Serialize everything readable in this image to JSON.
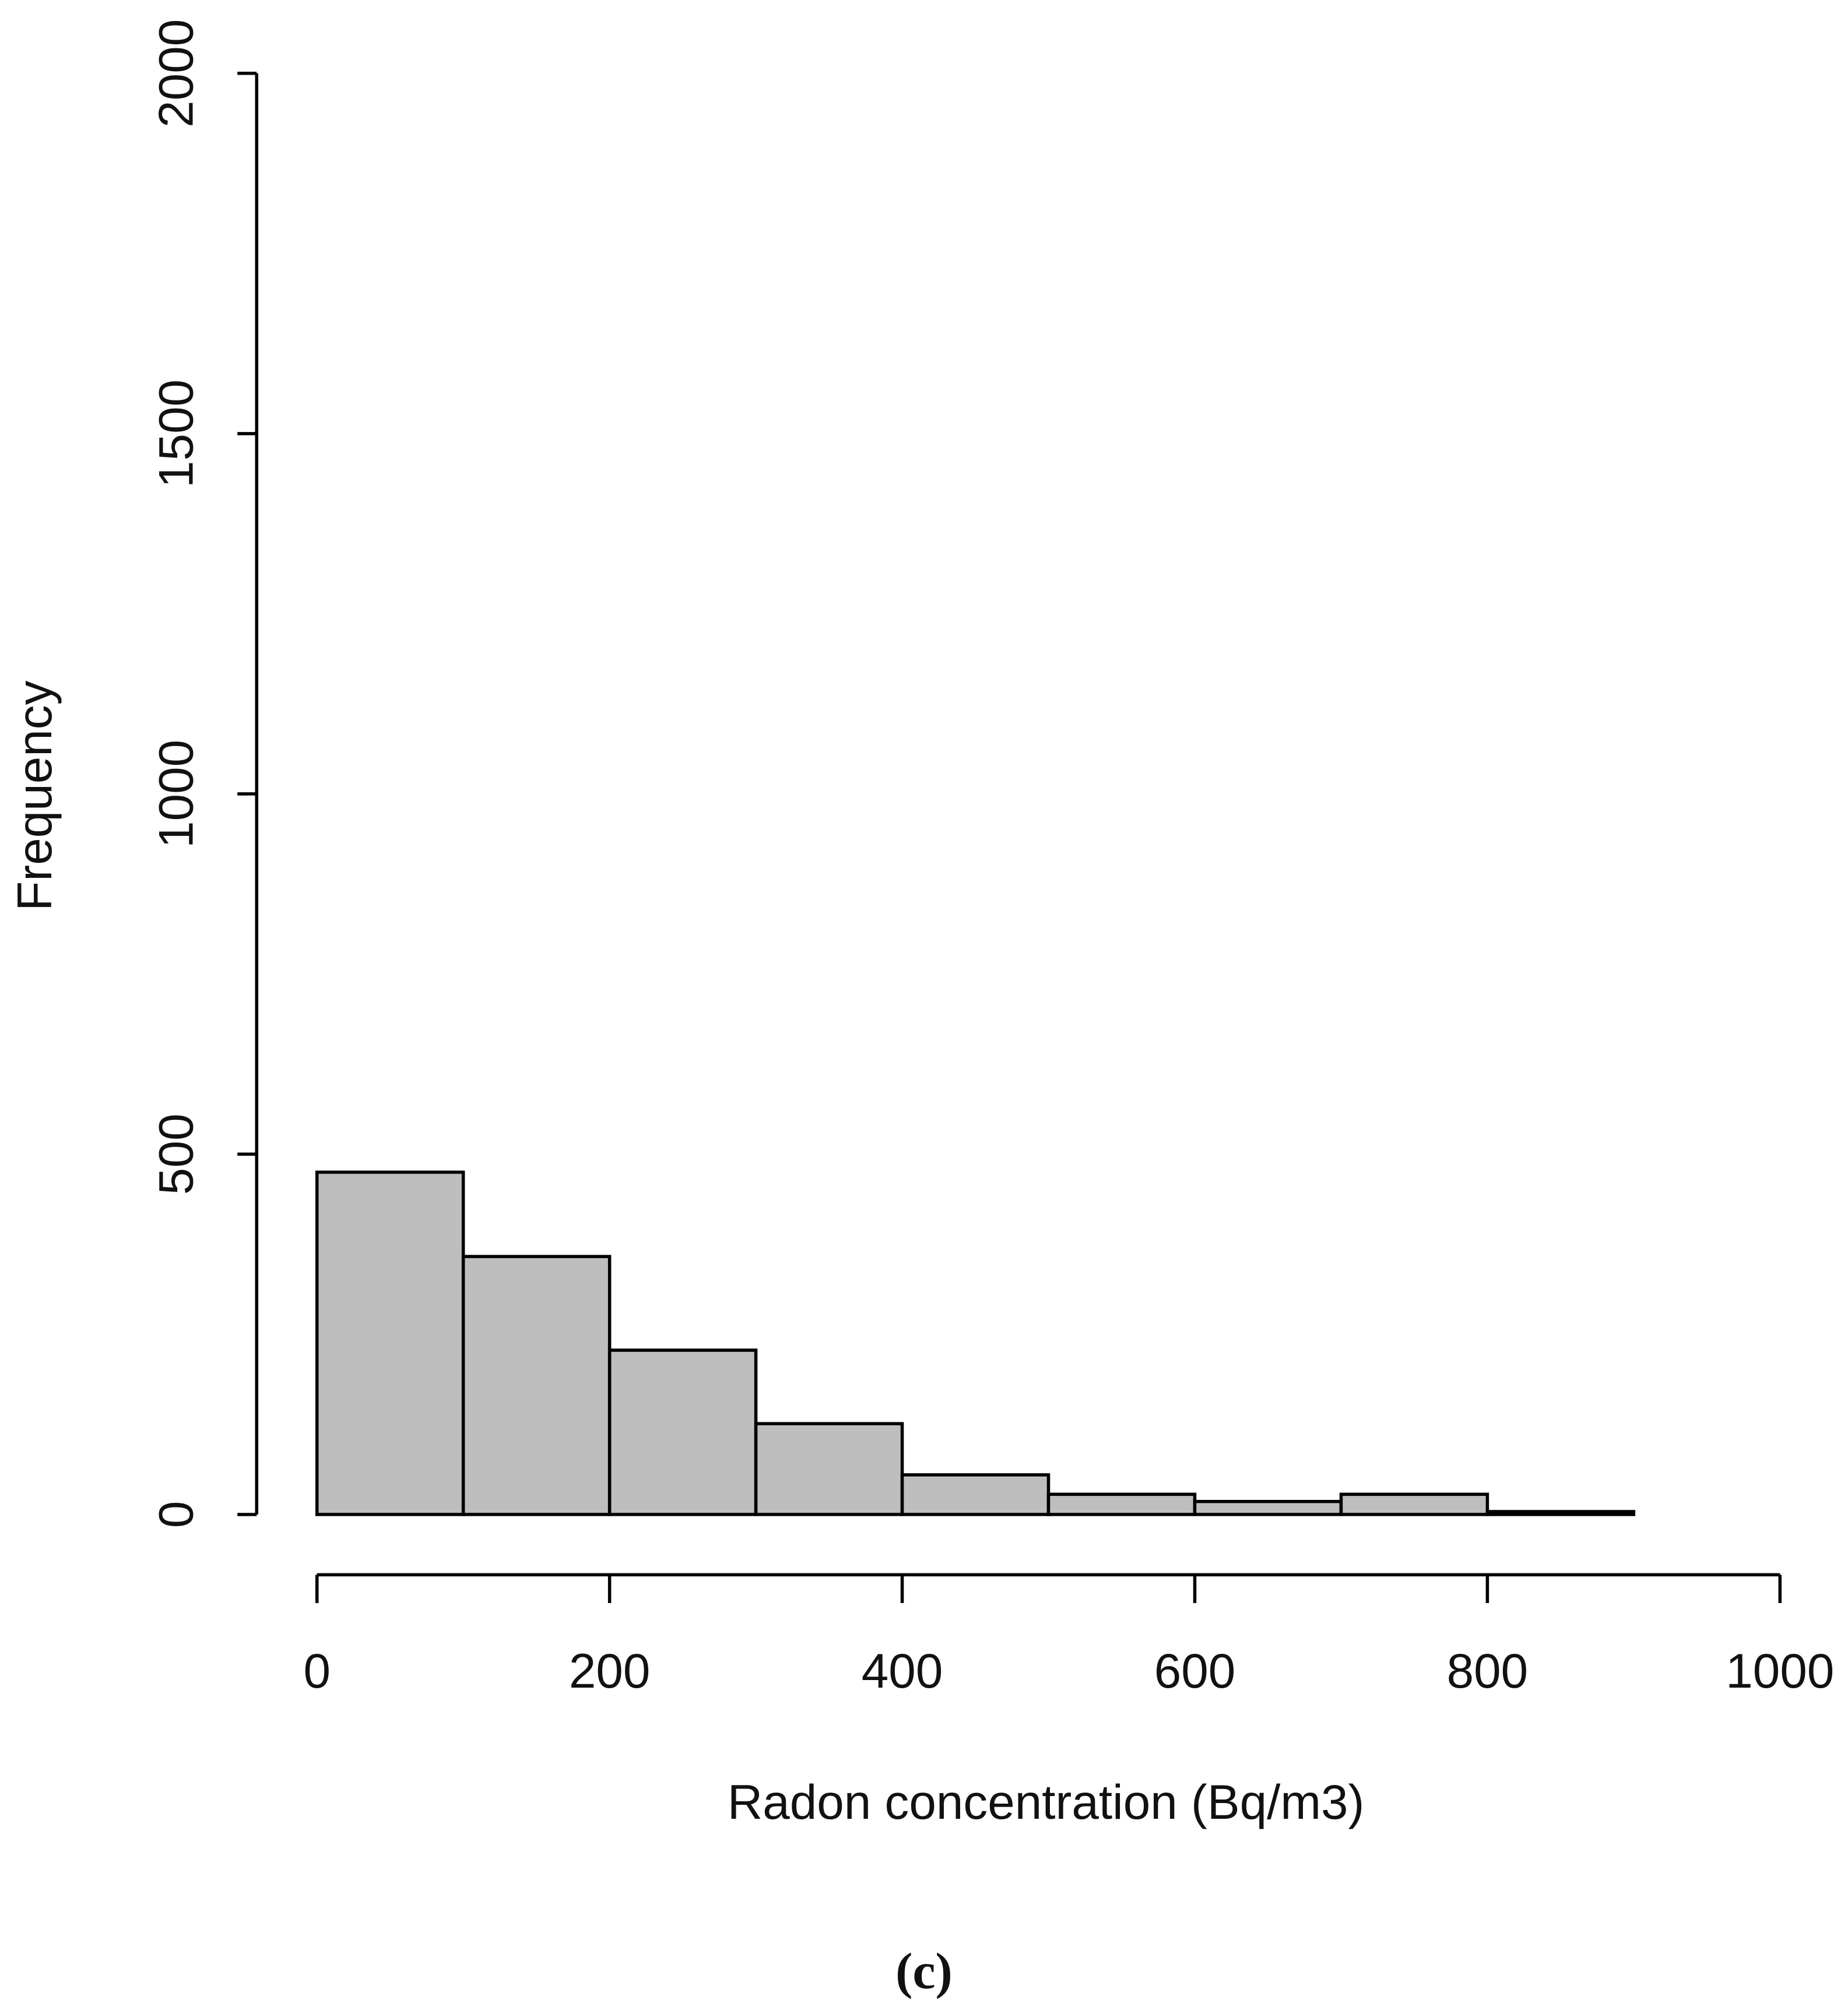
{
  "chart_data": {
    "type": "histogram",
    "x_label": "Radon concentration (Bq/m3)",
    "y_label": "Frequency",
    "caption": "(c)",
    "bins": [
      0,
      100,
      200,
      300,
      400,
      500,
      600,
      700,
      800,
      900
    ],
    "values": [
      475,
      358,
      228,
      126,
      55,
      28,
      18,
      28,
      4
    ],
    "color": "#bebebe",
    "xlim": [
      0,
      1000
    ],
    "xticks": [
      0,
      200,
      400,
      600,
      800,
      1000
    ],
    "ylim": [
      0,
      2000
    ],
    "yticks": [
      0,
      500,
      1000,
      1500,
      2000
    ]
  }
}
